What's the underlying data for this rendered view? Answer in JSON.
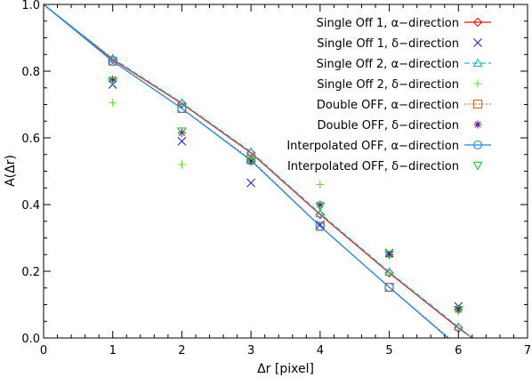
{
  "chart_data": {
    "type": "line",
    "xlabel": "Δr [pixel]",
    "ylabel": "A(Δr)",
    "xlim": [
      0,
      7
    ],
    "ylim": [
      0,
      1.0
    ],
    "xticks": [
      "0",
      "1",
      "2",
      "3",
      "4",
      "5",
      "6",
      "7"
    ],
    "yticks": [
      "0.0",
      "0.2",
      "0.4",
      "0.6",
      "0.8",
      "1.0"
    ],
    "legend_position": "top-right",
    "series": [
      {
        "name": "Single Off 1, α−direction",
        "color": "#ee1111",
        "marker": "diamond",
        "line": "solid",
        "x": [
          0,
          1,
          2,
          3,
          4,
          5,
          6,
          6.2
        ],
        "y": [
          1.0,
          0.835,
          0.703,
          0.555,
          0.37,
          0.195,
          0.03,
          0.0
        ]
      },
      {
        "name": "Single Off 1, δ−direction",
        "color": "#2222cc",
        "marker": "x",
        "line": "none",
        "x": [
          1,
          2,
          3,
          4,
          5,
          6
        ],
        "y": [
          0.76,
          0.59,
          0.465,
          0.34,
          0.255,
          0.095
        ]
      },
      {
        "name": "Single Off 2, α−direction",
        "color": "#22bbcc",
        "marker": "triangle",
        "line": "dashed",
        "x": [
          0,
          1,
          2,
          3,
          4,
          5,
          6,
          6.2
        ],
        "y": [
          1.0,
          0.838,
          0.705,
          0.558,
          0.373,
          0.198,
          0.033,
          0.0
        ]
      },
      {
        "name": "Single Off 2, δ−direction",
        "color": "#66dd22",
        "marker": "plus",
        "line": "none",
        "x": [
          1,
          2,
          3,
          4,
          5,
          6
        ],
        "y": [
          0.705,
          0.52,
          0.53,
          0.46,
          0.195,
          0.08
        ]
      },
      {
        "name": "Double OFF, α−direction",
        "color": "#cc6622",
        "marker": "square",
        "line": "dotted",
        "x": [
          0,
          1,
          2,
          3,
          4,
          5,
          5.87
        ],
        "y": [
          1.0,
          0.83,
          0.688,
          0.535,
          0.335,
          0.152,
          0.0
        ]
      },
      {
        "name": "Double OFF, δ−direction",
        "color": "#661188",
        "marker": "asterisk",
        "line": "none",
        "x": [
          1,
          2,
          3,
          4,
          5,
          6
        ],
        "y": [
          0.775,
          0.615,
          0.53,
          0.4,
          0.25,
          0.085
        ]
      },
      {
        "name": "Interpolated OFF, α−direction",
        "color": "#2288dd",
        "marker": "circle",
        "line": "solid",
        "x": [
          0,
          1,
          2,
          3,
          4,
          5,
          5.85
        ],
        "y": [
          1.0,
          0.83,
          0.688,
          0.532,
          0.335,
          0.152,
          0.0
        ]
      },
      {
        "name": "Interpolated OFF, δ−direction",
        "color": "#22cc22",
        "marker": "down-triangle",
        "line": "none",
        "x": [
          1,
          2,
          3,
          4,
          5,
          6
        ],
        "y": [
          0.77,
          0.62,
          0.53,
          0.395,
          0.25,
          0.085
        ]
      }
    ]
  }
}
